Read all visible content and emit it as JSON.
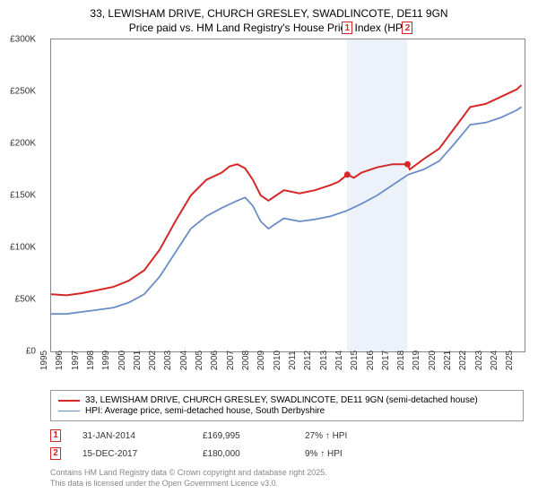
{
  "title_line1": "33, LEWISHAM DRIVE, CHURCH GRESLEY, SWADLINCOTE, DE11 9GN",
  "title_line2": "Price paid vs. HM Land Registry's House Price Index (HPI)",
  "chart": {
    "type": "line",
    "background_color": "#ffffff",
    "plot_border_color": "#888888",
    "shaded_band_color": "rgba(200,215,240,0.35)",
    "y": {
      "min": 0,
      "max": 300000,
      "ticks": [
        0,
        50000,
        100000,
        150000,
        200000,
        250000,
        300000
      ],
      "tick_labels": [
        "£0",
        "£50K",
        "£100K",
        "£150K",
        "£200K",
        "£250K",
        "£300K"
      ],
      "label_fontsize": 10
    },
    "x": {
      "min": 1995,
      "max": 2025.5,
      "ticks": [
        1995,
        1996,
        1997,
        1998,
        1999,
        2000,
        2001,
        2002,
        2003,
        2004,
        2005,
        2006,
        2007,
        2008,
        2009,
        2010,
        2011,
        2012,
        2013,
        2014,
        2015,
        2016,
        2017,
        2018,
        2019,
        2020,
        2021,
        2022,
        2023,
        2024,
        2025
      ],
      "label_fontsize": 10
    },
    "series": [
      {
        "name": "price_paid",
        "label": "33, LEWISHAM DRIVE, CHURCH GRESLEY, SWADLINCOTE, DE11 9GN (semi-detached house)",
        "color": "#d62728",
        "line_width": 2,
        "points": [
          [
            1995,
            55000
          ],
          [
            1996,
            54000
          ],
          [
            1997,
            56000
          ],
          [
            1998,
            59000
          ],
          [
            1999,
            62000
          ],
          [
            2000,
            68000
          ],
          [
            2001,
            78000
          ],
          [
            2002,
            98000
          ],
          [
            2003,
            125000
          ],
          [
            2004,
            150000
          ],
          [
            2005,
            165000
          ],
          [
            2006,
            172000
          ],
          [
            2006.5,
            178000
          ],
          [
            2007,
            180000
          ],
          [
            2007.5,
            176000
          ],
          [
            2008,
            165000
          ],
          [
            2008.5,
            150000
          ],
          [
            2009,
            145000
          ],
          [
            2009.5,
            150000
          ],
          [
            2010,
            155000
          ],
          [
            2011,
            152000
          ],
          [
            2012,
            155000
          ],
          [
            2013,
            160000
          ],
          [
            2013.5,
            163000
          ],
          [
            2014.08,
            169995
          ],
          [
            2014.5,
            167000
          ],
          [
            2015,
            172000
          ],
          [
            2016,
            177000
          ],
          [
            2017,
            180000
          ],
          [
            2017.96,
            180000
          ],
          [
            2018.1,
            175000
          ],
          [
            2019,
            185000
          ],
          [
            2020,
            195000
          ],
          [
            2021,
            215000
          ],
          [
            2022,
            235000
          ],
          [
            2023,
            238000
          ],
          [
            2024,
            245000
          ],
          [
            2025,
            252000
          ],
          [
            2025.3,
            256000
          ]
        ]
      },
      {
        "name": "hpi",
        "label": "HPI: Average price, semi-detached house, South Derbyshire",
        "color": "#6b8dc7",
        "line_width": 1.8,
        "points": [
          [
            1995,
            36000
          ],
          [
            1996,
            36000
          ],
          [
            1997,
            38000
          ],
          [
            1998,
            40000
          ],
          [
            1999,
            42000
          ],
          [
            2000,
            47000
          ],
          [
            2001,
            55000
          ],
          [
            2002,
            72000
          ],
          [
            2003,
            95000
          ],
          [
            2004,
            118000
          ],
          [
            2005,
            130000
          ],
          [
            2006,
            138000
          ],
          [
            2007,
            145000
          ],
          [
            2007.5,
            148000
          ],
          [
            2008,
            140000
          ],
          [
            2008.5,
            125000
          ],
          [
            2009,
            118000
          ],
          [
            2009.5,
            123000
          ],
          [
            2010,
            128000
          ],
          [
            2011,
            125000
          ],
          [
            2012,
            127000
          ],
          [
            2013,
            130000
          ],
          [
            2014,
            135000
          ],
          [
            2015,
            142000
          ],
          [
            2016,
            150000
          ],
          [
            2017,
            160000
          ],
          [
            2018,
            170000
          ],
          [
            2019,
            175000
          ],
          [
            2020,
            183000
          ],
          [
            2021,
            200000
          ],
          [
            2022,
            218000
          ],
          [
            2023,
            220000
          ],
          [
            2024,
            225000
          ],
          [
            2025,
            232000
          ],
          [
            2025.3,
            235000
          ]
        ]
      }
    ],
    "sale_markers": [
      {
        "num": "1",
        "x": 2014.08,
        "y": 169995,
        "color": "#d62728"
      },
      {
        "num": "2",
        "x": 2017.96,
        "y": 180000,
        "color": "#d62728"
      }
    ],
    "shaded_band": {
      "x_start": 2014.08,
      "x_end": 2017.96
    }
  },
  "legend": {
    "border_color": "#999999",
    "fontsize": 10
  },
  "sales_table": [
    {
      "num": "1",
      "color": "#d62728",
      "date": "31-JAN-2014",
      "price": "£169,995",
      "hpi_diff": "27% ↑ HPI"
    },
    {
      "num": "2",
      "color": "#d62728",
      "date": "15-DEC-2017",
      "price": "£180,000",
      "hpi_diff": "9% ↑ HPI"
    }
  ],
  "footer_line1": "Contains HM Land Registry data © Crown copyright and database right 2025.",
  "footer_line2": "This data is licensed under the Open Government Licence v3.0."
}
